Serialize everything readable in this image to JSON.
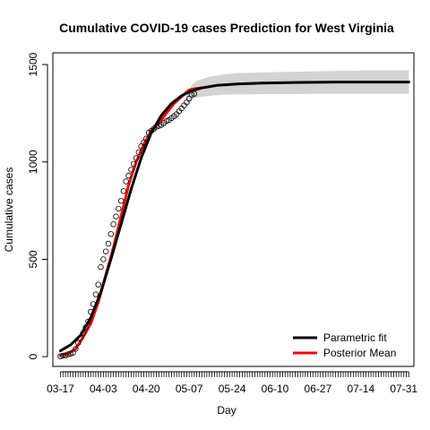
{
  "chart_data": {
    "type": "line",
    "title": "Cumulative COVID-19 cases Prediction for West Virginia",
    "xlabel": "Day",
    "ylabel": "Cumulative cases",
    "x_tick_labels": [
      "03-17",
      "04-03",
      "04-20",
      "05-07",
      "05-24",
      "06-10",
      "06-27",
      "07-14",
      "07-31"
    ],
    "x_tick_days": [
      0,
      17,
      34,
      51,
      68,
      85,
      102,
      119,
      136
    ],
    "xlim": [
      -3,
      140
    ],
    "ylim": [
      -50,
      1560
    ],
    "y_ticks": [
      0,
      500,
      1000,
      1500
    ],
    "observed_end_day": 56,
    "predict_end_day": 138,
    "legend": {
      "position": "bottom-right",
      "entries": [
        {
          "label": "Parametric fit",
          "color": "#000000"
        },
        {
          "label": "Posterior Mean",
          "color": "#ff0000"
        }
      ]
    },
    "series": [
      {
        "name": "Parametric fit",
        "color": "#000000",
        "x": [
          0,
          4,
          8,
          12,
          16,
          20,
          24,
          28,
          32,
          36,
          40,
          44,
          48,
          52,
          56,
          62,
          70,
          80,
          95,
          110,
          125,
          138
        ],
        "y": [
          30,
          60,
          110,
          200,
          330,
          500,
          680,
          860,
          1020,
          1150,
          1240,
          1300,
          1340,
          1365,
          1380,
          1393,
          1400,
          1405,
          1408,
          1410,
          1410,
          1410
        ]
      },
      {
        "name": "Posterior Mean",
        "color": "#ff0000",
        "x": [
          0,
          3,
          6,
          9,
          12,
          15,
          18,
          21,
          24,
          27,
          30,
          33,
          36,
          39,
          42,
          45,
          48,
          51,
          54,
          56
        ],
        "y": [
          5,
          15,
          40,
          100,
          170,
          280,
          420,
          560,
          720,
          880,
          1000,
          1090,
          1160,
          1200,
          1250,
          1300,
          1335,
          1370,
          1378,
          1380
        ]
      }
    ],
    "band": {
      "x": [
        50,
        52,
        54,
        56,
        60,
        65,
        70,
        80,
        100,
        120,
        138
      ],
      "upper": [
        1340,
        1395,
        1415,
        1425,
        1440,
        1450,
        1455,
        1460,
        1465,
        1470,
        1470
      ],
      "lower": [
        1290,
        1320,
        1330,
        1335,
        1340,
        1345,
        1347,
        1348,
        1350,
        1350,
        1350
      ],
      "color": "#d3d3d3"
    },
    "observed": {
      "x": [
        0,
        1,
        2,
        3,
        4,
        5,
        6,
        7,
        8,
        9,
        10,
        11,
        12,
        13,
        14,
        15,
        16,
        17,
        18,
        19,
        20,
        21,
        22,
        23,
        24,
        25,
        26,
        27,
        28,
        29,
        30,
        31,
        32,
        33,
        34,
        35,
        36,
        37,
        38,
        39,
        40,
        41,
        42,
        43,
        44,
        45,
        46,
        47,
        48,
        49,
        50,
        51,
        52,
        53
      ],
      "y": [
        2,
        5,
        7,
        12,
        16,
        20,
        40,
        70,
        95,
        120,
        150,
        180,
        230,
        270,
        320,
        370,
        460,
        500,
        540,
        580,
        630,
        680,
        720,
        760,
        800,
        850,
        900,
        930,
        960,
        990,
        1020,
        1050,
        1080,
        1100,
        1120,
        1150,
        1160,
        1170,
        1180,
        1185,
        1190,
        1200,
        1210,
        1215,
        1225,
        1235,
        1245,
        1260,
        1275,
        1290,
        1305,
        1325,
        1345,
        1350
      ]
    }
  }
}
